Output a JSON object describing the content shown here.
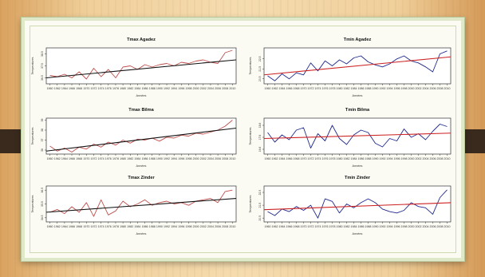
{
  "chart_data": [
    {
      "type": "line",
      "title": "Tmax Agadez",
      "xlabel": "Années",
      "ylabel": "Temperatures",
      "xlim": [
        1959,
        2011
      ],
      "ylim": [
        36.0,
        39.0
      ],
      "yticks": [
        36.5,
        37.5,
        38.5
      ],
      "xticks": [
        1960,
        1962,
        1964,
        1966,
        1968,
        1970,
        1972,
        1974,
        1976,
        1978,
        1980,
        1982,
        1984,
        1986,
        1988,
        1990,
        1992,
        1994,
        1996,
        1998,
        2000,
        2002,
        2004,
        2006,
        2008,
        2010
      ],
      "series": [
        {
          "color": "#c0504d",
          "x": [
            1960,
            1962,
            1964,
            1966,
            1968,
            1970,
            1972,
            1974,
            1976,
            1978,
            1980,
            1982,
            1984,
            1986,
            1988,
            1990,
            1992,
            1994,
            1996,
            1998,
            2000,
            2002,
            2004,
            2006,
            2008,
            2010
          ],
          "y": [
            36.7,
            36.6,
            36.8,
            36.5,
            37.0,
            36.4,
            37.3,
            36.6,
            37.2,
            36.5,
            37.4,
            37.5,
            37.2,
            37.6,
            37.4,
            37.6,
            37.7,
            37.5,
            37.8,
            37.7,
            37.9,
            38.0,
            37.8,
            37.7,
            38.6,
            38.8
          ]
        }
      ],
      "trend": {
        "color": "#111111",
        "y_start": 36.5,
        "y_end": 38.0
      }
    },
    {
      "type": "line",
      "title": "Tmin Agadez",
      "xlabel": "Années",
      "ylabel": "Temperatures",
      "xlim": [
        1959,
        2011
      ],
      "ylim": [
        20.0,
        23.6
      ],
      "yticks": [
        20.5,
        21.5,
        22.5
      ],
      "xticks": [
        1960,
        1962,
        1964,
        1966,
        1968,
        1970,
        1972,
        1974,
        1976,
        1978,
        1980,
        1982,
        1984,
        1986,
        1988,
        1990,
        1992,
        1994,
        1996,
        1998,
        2000,
        2002,
        2004,
        2006,
        2008,
        2010
      ],
      "series": [
        {
          "color": "#1f2a8c",
          "x": [
            1960,
            1962,
            1964,
            1966,
            1968,
            1970,
            1972,
            1974,
            1976,
            1978,
            1980,
            1982,
            1984,
            1986,
            1988,
            1990,
            1992,
            1994,
            1996,
            1998,
            2000,
            2002,
            2004,
            2006,
            2008,
            2010
          ],
          "y": [
            20.8,
            20.3,
            21.0,
            20.5,
            21.1,
            20.9,
            22.1,
            21.3,
            22.3,
            21.8,
            22.4,
            22.0,
            22.6,
            22.8,
            22.2,
            21.9,
            21.7,
            22.0,
            22.5,
            22.8,
            22.3,
            22.1,
            21.7,
            21.2,
            23.0,
            23.3
          ]
        }
      ],
      "trend": {
        "color": "#cc2222",
        "y_start": 20.9,
        "y_end": 22.7
      }
    },
    {
      "type": "line",
      "title": "Tmax Bilma",
      "xlabel": "Années",
      "ylabel": "Temperatures",
      "xlim": [
        1959,
        2011
      ],
      "ylim": [
        35.6,
        39.2
      ],
      "yticks": [
        36.0,
        37.0,
        38.0,
        39.0
      ],
      "xticks": [
        1960,
        1962,
        1964,
        1966,
        1968,
        1970,
        1972,
        1974,
        1976,
        1978,
        1980,
        1982,
        1984,
        1986,
        1988,
        1990,
        1992,
        1994,
        1996,
        1998,
        2000,
        2002,
        2004,
        2006,
        2008,
        2010
      ],
      "series": [
        {
          "color": "#c0504d",
          "x": [
            1960,
            1962,
            1964,
            1966,
            1968,
            1970,
            1972,
            1974,
            1976,
            1978,
            1980,
            1982,
            1984,
            1986,
            1988,
            1990,
            1992,
            1994,
            1996,
            1998,
            2000,
            2002,
            2004,
            2006,
            2008,
            2010
          ],
          "y": [
            36.4,
            35.9,
            36.2,
            35.8,
            36.3,
            36.1,
            36.6,
            36.3,
            36.8,
            36.5,
            37.0,
            36.7,
            37.1,
            37.0,
            37.2,
            36.9,
            37.3,
            37.2,
            37.5,
            37.4,
            37.7,
            37.6,
            37.8,
            38.0,
            38.4,
            39.0
          ]
        }
      ],
      "trend": {
        "color": "#111111",
        "y_start": 35.9,
        "y_end": 38.2
      }
    },
    {
      "type": "line",
      "title": "Tmin Bilma",
      "xlabel": "Années",
      "ylabel": "Temperatures",
      "xlim": [
        1959,
        2011
      ],
      "ylim": [
        16.2,
        19.2
      ],
      "yticks": [
        16.6,
        17.6,
        18.6
      ],
      "xticks": [
        1960,
        1962,
        1964,
        1966,
        1968,
        1970,
        1972,
        1974,
        1976,
        1978,
        1980,
        1982,
        1984,
        1986,
        1988,
        1990,
        1992,
        1994,
        1996,
        1998,
        2000,
        2002,
        2004,
        2006,
        2008,
        2010
      ],
      "series": [
        {
          "color": "#1f2a8c",
          "x": [
            1960,
            1962,
            1964,
            1966,
            1968,
            1970,
            1972,
            1974,
            1976,
            1978,
            1980,
            1982,
            1984,
            1986,
            1988,
            1990,
            1992,
            1994,
            1996,
            1998,
            2000,
            2002,
            2004,
            2006,
            2008,
            2010
          ],
          "y": [
            18.0,
            17.2,
            17.8,
            17.4,
            18.2,
            18.4,
            16.7,
            17.9,
            17.3,
            18.6,
            17.5,
            17.0,
            17.8,
            18.2,
            18.0,
            17.1,
            16.8,
            17.5,
            17.3,
            18.3,
            17.6,
            17.9,
            17.4,
            18.1,
            18.7,
            18.5
          ]
        }
      ],
      "trend": {
        "color": "#cc2222",
        "y_start": 17.5,
        "y_end": 17.95
      }
    },
    {
      "type": "line",
      "title": "Tmax Zinder",
      "xlabel": "Années",
      "ylabel": "Temperatures",
      "xlim": [
        1959,
        2011
      ],
      "ylim": [
        34.2,
        36.8
      ],
      "yticks": [
        34.5,
        35.5,
        36.5
      ],
      "xticks": [
        1960,
        1962,
        1964,
        1966,
        1968,
        1970,
        1972,
        1974,
        1976,
        1978,
        1980,
        1982,
        1984,
        1986,
        1988,
        1990,
        1992,
        1994,
        1996,
        1998,
        2000,
        2002,
        2004,
        2006,
        2008,
        2010
      ],
      "series": [
        {
          "color": "#c0504d",
          "x": [
            1960,
            1962,
            1964,
            1966,
            1968,
            1970,
            1972,
            1974,
            1976,
            1978,
            1980,
            1982,
            1984,
            1986,
            1988,
            1990,
            1992,
            1994,
            1996,
            1998,
            2000,
            2002,
            2004,
            2006,
            2008,
            2010
          ],
          "y": [
            34.9,
            35.1,
            34.8,
            35.3,
            34.9,
            35.6,
            34.6,
            35.8,
            34.7,
            35.0,
            35.7,
            35.3,
            35.5,
            35.8,
            35.4,
            35.6,
            35.7,
            35.5,
            35.6,
            35.4,
            35.7,
            35.8,
            35.9,
            35.6,
            36.4,
            36.5
          ]
        }
      ],
      "trend": {
        "color": "#111111",
        "y_start": 34.9,
        "y_end": 35.9
      }
    },
    {
      "type": "line",
      "title": "Tmin Zinder",
      "xlabel": "Années",
      "ylabel": "Temperatures",
      "xlim": [
        1959,
        2011
      ],
      "ylim": [
        20.2,
        23.0
      ],
      "yticks": [
        20.5,
        21.5,
        22.5
      ],
      "xticks": [
        1960,
        1962,
        1964,
        1966,
        1968,
        1970,
        1972,
        1974,
        1976,
        1978,
        1980,
        1982,
        1984,
        1986,
        1988,
        1990,
        1992,
        1994,
        1996,
        1998,
        2000,
        2002,
        2004,
        2006,
        2008,
        2010
      ],
      "series": [
        {
          "color": "#1f2a8c",
          "x": [
            1960,
            1962,
            1964,
            1966,
            1968,
            1970,
            1972,
            1974,
            1976,
            1978,
            1980,
            1982,
            1984,
            1986,
            1988,
            1990,
            1992,
            1994,
            1996,
            1998,
            2000,
            2002,
            2004,
            2006,
            2008,
            2010
          ],
          "y": [
            21.0,
            20.7,
            21.2,
            21.0,
            21.4,
            21.1,
            21.5,
            20.5,
            22.0,
            21.8,
            20.9,
            21.6,
            21.3,
            21.7,
            22.0,
            21.7,
            21.2,
            21.0,
            20.9,
            21.1,
            21.7,
            21.4,
            21.3,
            20.8,
            22.1,
            22.7
          ]
        }
      ],
      "trend": {
        "color": "#cc2222",
        "y_start": 21.15,
        "y_end": 21.7
      }
    }
  ]
}
